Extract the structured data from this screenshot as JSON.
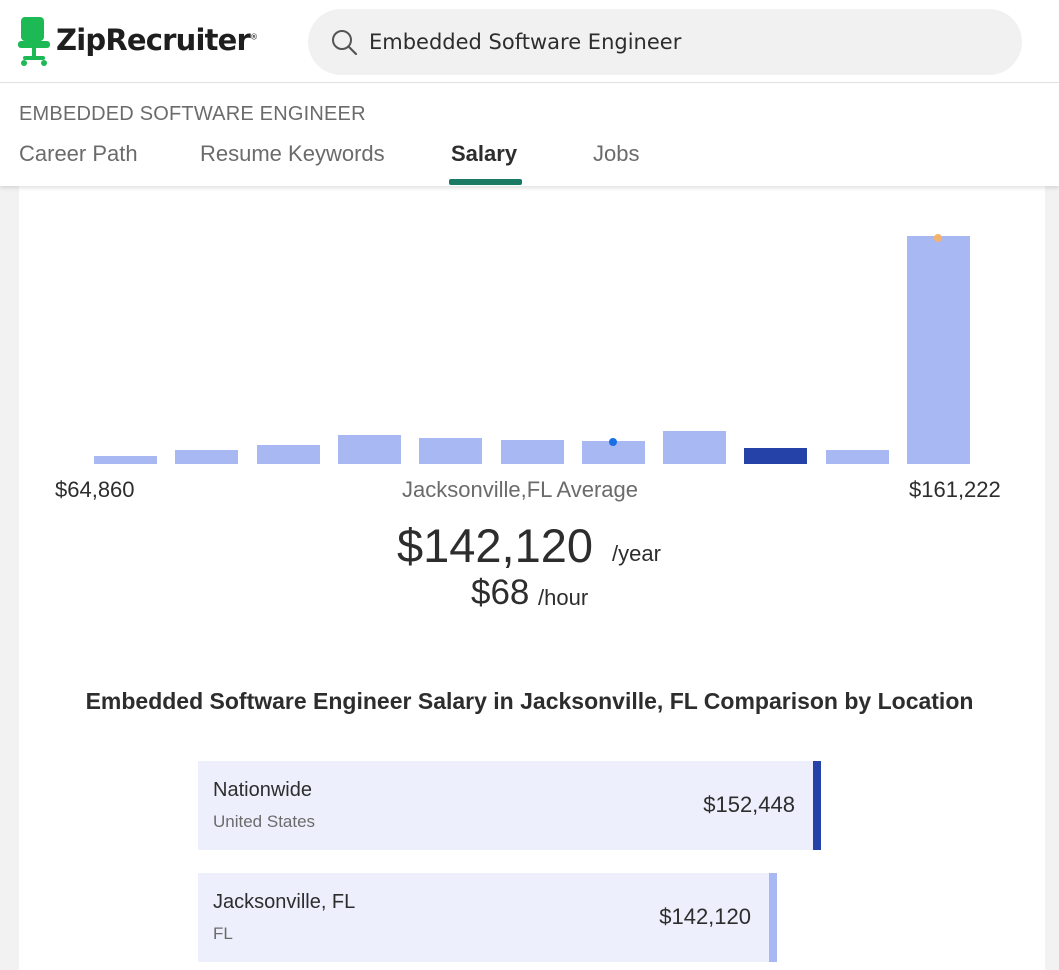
{
  "header": {
    "logo_text": "ZipRecruiter",
    "logo_reg": "®",
    "search_value": "Embedded Software Engineer",
    "brand_color": "#1db954"
  },
  "subheader": {
    "career_title": "EMBEDDED SOFTWARE ENGINEER",
    "tabs": [
      {
        "label": "Career Path",
        "active": false
      },
      {
        "label": "Resume Keywords",
        "active": false
      },
      {
        "label": "Salary",
        "active": true
      },
      {
        "label": "Jobs",
        "active": false
      }
    ],
    "active_color": "#1a7a64"
  },
  "salary": {
    "histogram_bar_levels": [
      0.035,
      0.06,
      0.085,
      0.125,
      0.115,
      0.105,
      0.1,
      0.145,
      0.07,
      0.06,
      1.0
    ],
    "current_bar_index": 8,
    "min_label": "$64,860",
    "mid_label": "Jacksonville,FL Average",
    "max_label": "$161,222",
    "annual": "$142,120",
    "annual_unit": "/year",
    "hourly": "$68",
    "hourly_unit": "/hour",
    "bar_color": "#a8b8f2",
    "current_bar_color": "#2442a7",
    "marker_blue": "#1a6fe6",
    "marker_orange": "#f5b26b"
  },
  "comparison": {
    "title": "Embedded Software Engineer Salary in Jacksonville, FL Comparison by Location",
    "rows": [
      {
        "name": "Nationwide",
        "sub": "United States",
        "value": "$152,448",
        "edge_color": "#2442a7"
      },
      {
        "name": "Jacksonville, FL",
        "sub": "FL",
        "value": "$142,120",
        "edge_color": "#a8b8f2"
      }
    ]
  }
}
